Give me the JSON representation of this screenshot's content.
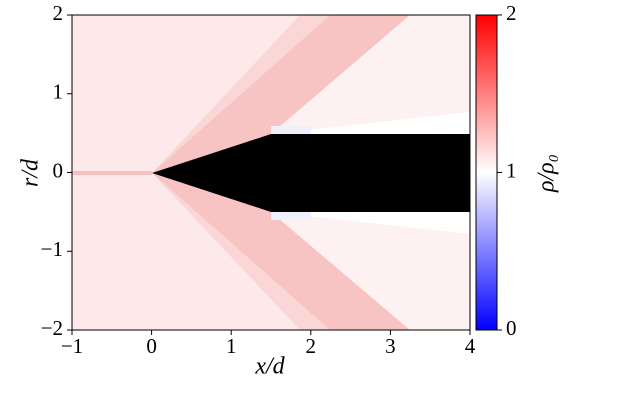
{
  "chart_data": {
    "type": "heatmap",
    "xlabel": "x/d",
    "ylabel": "r/d",
    "colorbar_label": "ρ/ρ₀",
    "xlim": [
      -1,
      4
    ],
    "xticks": [
      {
        "value": -1,
        "label": "−1"
      },
      0,
      1,
      2,
      3,
      4
    ],
    "ylim": [
      -2,
      2
    ],
    "yticks": [
      {
        "value": -2,
        "label": "−2"
      },
      {
        "value": -1,
        "label": "−1"
      },
      0,
      1,
      2
    ],
    "clim": [
      0,
      2
    ],
    "cticks": [
      0,
      1,
      2
    ],
    "colormap": [
      "#0000ff",
      "#ffffff",
      "#ff0000"
    ]
  }
}
